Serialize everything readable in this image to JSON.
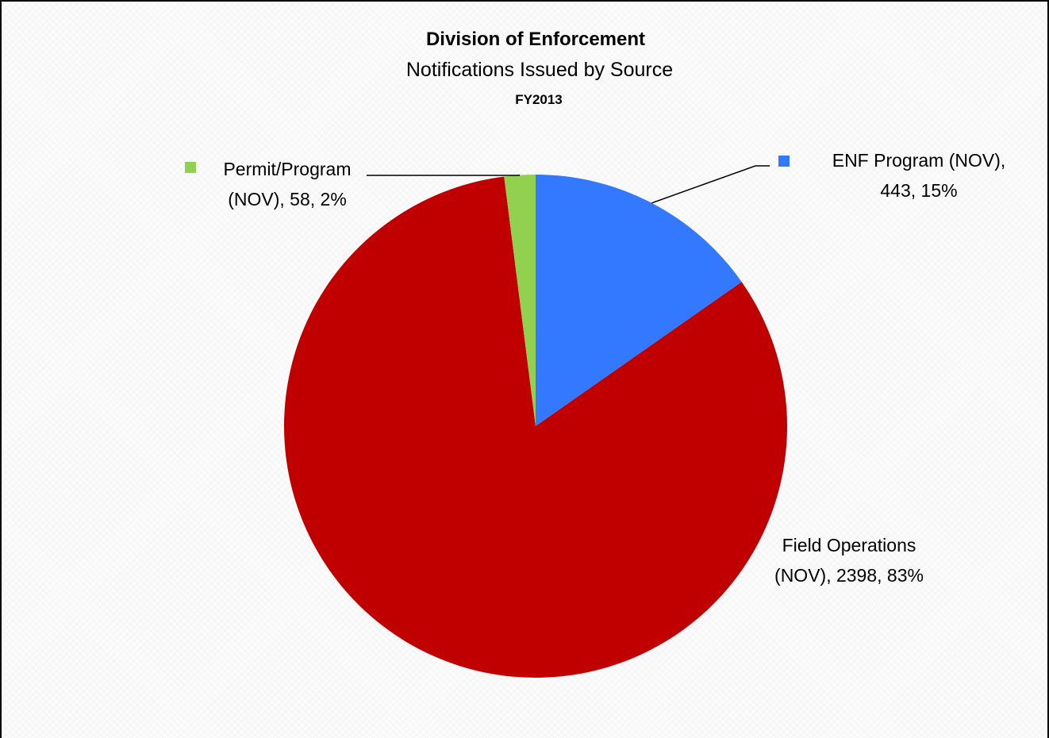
{
  "chart_data": {
    "type": "pie",
    "title": "Division of Enforcement",
    "subtitle": "Notifications Issued by Source",
    "subtitle2": "FY2013",
    "slices": [
      {
        "label": "ENF Program (NOV)",
        "value": 443,
        "percent": 15,
        "color": "#3279FF",
        "label_lines": [
          "ENF Program (NOV),",
          "443, 15%"
        ],
        "legend_key": true
      },
      {
        "label": "Field Operations (NOV)",
        "value": 2398,
        "percent": 83,
        "color": "#C00000",
        "label_lines": [
          "Field Operations",
          "(NOV), 2398, 83%"
        ],
        "legend_key": false
      },
      {
        "label": "Permit/Program (NOV)",
        "value": 58,
        "percent": 2,
        "color": "#92D050",
        "label_lines": [
          "Permit/Program",
          "(NOV), 58, 2%"
        ],
        "legend_key": true
      }
    ]
  }
}
